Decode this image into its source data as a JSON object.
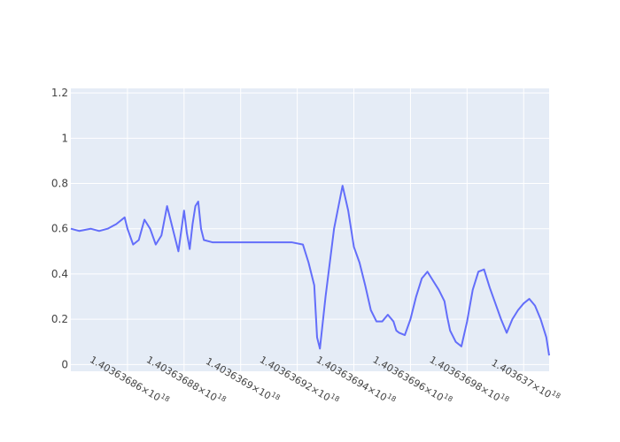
{
  "chart_data": {
    "type": "line",
    "title": "",
    "xlabel": "",
    "ylabel": "",
    "grid": true,
    "legend": "none",
    "colors": {
      "plot_bg": "#e5ecf6",
      "line": "#636efa",
      "page_bg": "#ffffff"
    },
    "x_tick_labels": [
      {
        "mantissa": "1.40363686",
        "power": "18"
      },
      {
        "mantissa": "1.40363688",
        "power": "18"
      },
      {
        "mantissa": "1.4036369",
        "power": "18"
      },
      {
        "mantissa": "1.40363692",
        "power": "18"
      },
      {
        "mantissa": "1.40363694",
        "power": "18"
      },
      {
        "mantissa": "1.40363696",
        "power": "18"
      },
      {
        "mantissa": "1.40363698",
        "power": "18"
      },
      {
        "mantissa": "1.403637",
        "power": "18"
      }
    ],
    "x_tick_values": [
      1.40363686,
      1.40363688,
      1.4036369,
      1.40363692,
      1.40363694,
      1.40363696,
      1.40363698,
      1.403637
    ],
    "x_scale": "×10^18",
    "xlim": [
      1.40363684,
      1.403637009
    ],
    "y_ticks": [
      0,
      0.2,
      0.4,
      0.6,
      0.8,
      1,
      1.2
    ],
    "y_tick_labels": [
      "0",
      "0.2",
      "0.4",
      "0.6",
      "0.8",
      "1",
      "1.2"
    ],
    "ylim": [
      -0.03,
      1.22
    ],
    "series": [
      {
        "x": [
          1.40363684,
          1.403636843,
          1.403636847,
          1.40363685,
          1.403636853,
          1.403636856,
          1.403636859,
          1.40363686,
          1.403636862,
          1.403636864,
          1.403636866,
          1.403636868,
          1.40363687,
          1.403636872,
          1.403636874,
          1.403636876,
          1.403636878,
          1.40363688,
          1.403636881,
          1.403636882,
          1.403636883,
          1.403636884,
          1.403636885,
          1.403636886,
          1.403636887,
          1.40363689,
          1.4036369,
          1.40363691,
          1.403636918,
          1.403636922,
          1.403636924,
          1.403636926,
          1.403636927,
          1.403636928,
          1.40363693,
          1.403636933,
          1.403636936,
          1.403636938,
          1.40363694,
          1.403636942,
          1.403636944,
          1.403636946,
          1.403636948,
          1.40363695,
          1.403636952,
          1.403636954,
          1.403636955,
          1.403636956,
          1.403636958,
          1.40363696,
          1.403636962,
          1.403636964,
          1.403636966,
          1.403636968,
          1.40363697,
          1.403636972,
          1.403636973,
          1.403636974,
          1.403636976,
          1.403636978,
          1.40363698,
          1.403636982,
          1.403636984,
          1.403636986,
          1.403636988,
          1.40363699,
          1.403636992,
          1.403636994,
          1.403636996,
          1.403636998,
          1.403637,
          1.403637002,
          1.403637004,
          1.403637006,
          1.403637008,
          1.403637009
        ],
        "y": [
          0.6,
          0.59,
          0.6,
          0.59,
          0.6,
          0.62,
          0.65,
          0.6,
          0.53,
          0.55,
          0.64,
          0.6,
          0.53,
          0.57,
          0.7,
          0.6,
          0.5,
          0.68,
          0.58,
          0.51,
          0.62,
          0.7,
          0.72,
          0.6,
          0.55,
          0.54,
          0.54,
          0.54,
          0.54,
          0.53,
          0.45,
          0.35,
          0.12,
          0.07,
          0.3,
          0.6,
          0.79,
          0.68,
          0.52,
          0.45,
          0.35,
          0.24,
          0.19,
          0.19,
          0.22,
          0.19,
          0.15,
          0.14,
          0.13,
          0.2,
          0.3,
          0.38,
          0.41,
          0.37,
          0.33,
          0.28,
          0.21,
          0.15,
          0.1,
          0.08,
          0.19,
          0.33,
          0.41,
          0.42,
          0.34,
          0.27,
          0.2,
          0.14,
          0.2,
          0.24,
          0.27,
          0.29,
          0.26,
          0.2,
          0.12,
          0.04
        ]
      }
    ]
  }
}
